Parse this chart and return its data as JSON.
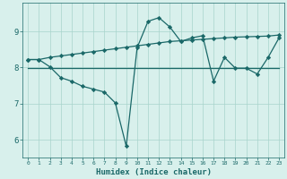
{
  "xlabel": "Humidex (Indice chaleur)",
  "ylabel": "",
  "bg_color": "#d8f0ec",
  "grid_color": "#a8d4cc",
  "line_color": "#1a6868",
  "line1_x": [
    0,
    1,
    2,
    3,
    4,
    5,
    6,
    7,
    8,
    9,
    10,
    11,
    12,
    13,
    14,
    15,
    16,
    17,
    18,
    19,
    20,
    21,
    22,
    23
  ],
  "line1_y": [
    8.22,
    8.22,
    8.28,
    8.32,
    8.36,
    8.4,
    8.44,
    8.48,
    8.52,
    8.56,
    8.6,
    8.64,
    8.68,
    8.72,
    8.74,
    8.76,
    8.78,
    8.8,
    8.82,
    8.84,
    8.85,
    8.86,
    8.87,
    8.9
  ],
  "line2_x": [
    0,
    23
  ],
  "line2_y": [
    7.98,
    7.98
  ],
  "line3_x": [
    0,
    1,
    2,
    3,
    4,
    5,
    6,
    7,
    8,
    9,
    10,
    11,
    12,
    13,
    14,
    15,
    16,
    17,
    18,
    19,
    20,
    21,
    22,
    23
  ],
  "line3_y": [
    8.22,
    8.22,
    8.02,
    7.72,
    7.62,
    7.48,
    7.4,
    7.32,
    7.02,
    5.82,
    8.55,
    9.28,
    9.38,
    9.12,
    8.72,
    8.82,
    8.88,
    7.62,
    8.28,
    7.98,
    7.98,
    7.82,
    8.28,
    8.82
  ],
  "ylim": [
    5.5,
    9.8
  ],
  "xlim": [
    -0.5,
    23.5
  ],
  "xticks": [
    0,
    1,
    2,
    3,
    4,
    5,
    6,
    7,
    8,
    9,
    10,
    11,
    12,
    13,
    14,
    15,
    16,
    17,
    18,
    19,
    20,
    21,
    22,
    23
  ],
  "yticks": [
    6,
    7,
    8,
    9
  ],
  "marker": "D",
  "marker_size": 2.2,
  "linewidth": 0.9
}
